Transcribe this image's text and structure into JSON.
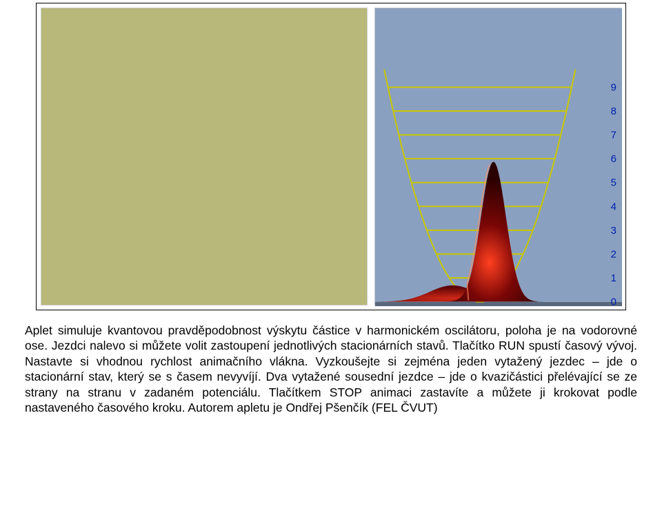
{
  "figure": {
    "left_panel": {
      "background_color": "#b8b87a",
      "border_color": "#cccccc"
    },
    "right_panel": {
      "type": "diagram",
      "background_color": "#8aa0c0",
      "border_color": "#cccccc",
      "axis_right_labels": [
        "0",
        "1",
        "2",
        "3",
        "4",
        "5",
        "6",
        "7",
        "8",
        "9"
      ],
      "axis_label_color": "#0020b0",
      "axis_label_fontsize": 15,
      "level_line_color": "#c8c800",
      "level_line_width": 2,
      "parabola_color": "#c8c800",
      "parabola_width": 2,
      "parabola": {
        "x_center": 0.46,
        "y_base": 0.985,
        "half_width_at_top": 0.42,
        "depth": 0.78
      },
      "levels_y": [
        0.985,
        0.905,
        0.825,
        0.745,
        0.665,
        0.585,
        0.505,
        0.425,
        0.345,
        0.265
      ],
      "gaussian_peak": {
        "x_center": 0.52,
        "sigma": 0.055,
        "height": 0.47,
        "fill_colors": [
          "#ff4020",
          "#7a0606",
          "#2a0000"
        ],
        "highlight_color": "#ff9060"
      },
      "small_bump": {
        "x_center": 0.34,
        "sigma": 0.1,
        "height": 0.055,
        "fill_colors": [
          "#d02818",
          "#5a0404"
        ]
      }
    }
  },
  "caption": {
    "text": "Aplet simuluje kvantovou pravděpodobnost výskytu částice v harmonickém oscilátoru, poloha je na vodorovné ose. Jezdci nalevo si můžete volit zastoupení jednotlivých stacionárních stavů. Tlačítko RUN spustí časový vývoj. Nastavte si vhodnou rychlost animačního vlákna. Vyzkoušejte si zejména jeden vytažený jezdec – jde o stacionární stav, který se s časem nevyvíjí. Dva vytažené sousední jezdce – jde o kvazičástici přelévající se ze strany na stranu v zadaném potenciálu. Tlačítkem STOP animaci zastavíte a můžete ji krokovat podle nastaveného časového kroku. Autorem apletu je Ondřej Pšenčík (FEL ČVUT)"
  }
}
